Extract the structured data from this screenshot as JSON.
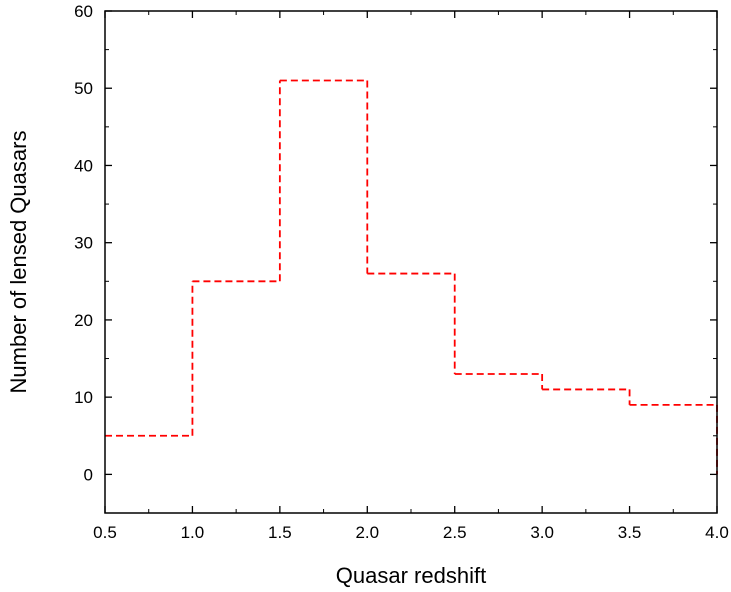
{
  "chart_data": {
    "type": "step",
    "title": "",
    "xlabel": "Quasar redshift",
    "ylabel": "Number of lensed Quasars",
    "xlim": [
      0.5,
      4.0
    ],
    "ylim": [
      -5,
      60
    ],
    "xticks": [
      "0.5",
      "1.0",
      "1.5",
      "2.0",
      "2.5",
      "3.0",
      "3.5",
      "4.0"
    ],
    "yticks": [
      "0",
      "10",
      "20",
      "30",
      "40",
      "50",
      "60"
    ],
    "grid": false,
    "legend": "none",
    "series": [
      {
        "color": "#ff0000",
        "line_style": "dashed",
        "bins": [
          {
            "x0": 0.5,
            "x1": 1.0,
            "value": 5
          },
          {
            "x0": 1.0,
            "x1": 1.5,
            "value": 25
          },
          {
            "x0": 1.5,
            "x1": 2.0,
            "value": 51
          },
          {
            "x0": 2.0,
            "x1": 2.5,
            "value": 26
          },
          {
            "x0": 2.5,
            "x1": 3.0,
            "value": 13
          },
          {
            "x0": 3.0,
            "x1": 3.5,
            "value": 11
          },
          {
            "x0": 3.5,
            "x1": 4.0,
            "value": 9
          }
        ]
      }
    ]
  }
}
